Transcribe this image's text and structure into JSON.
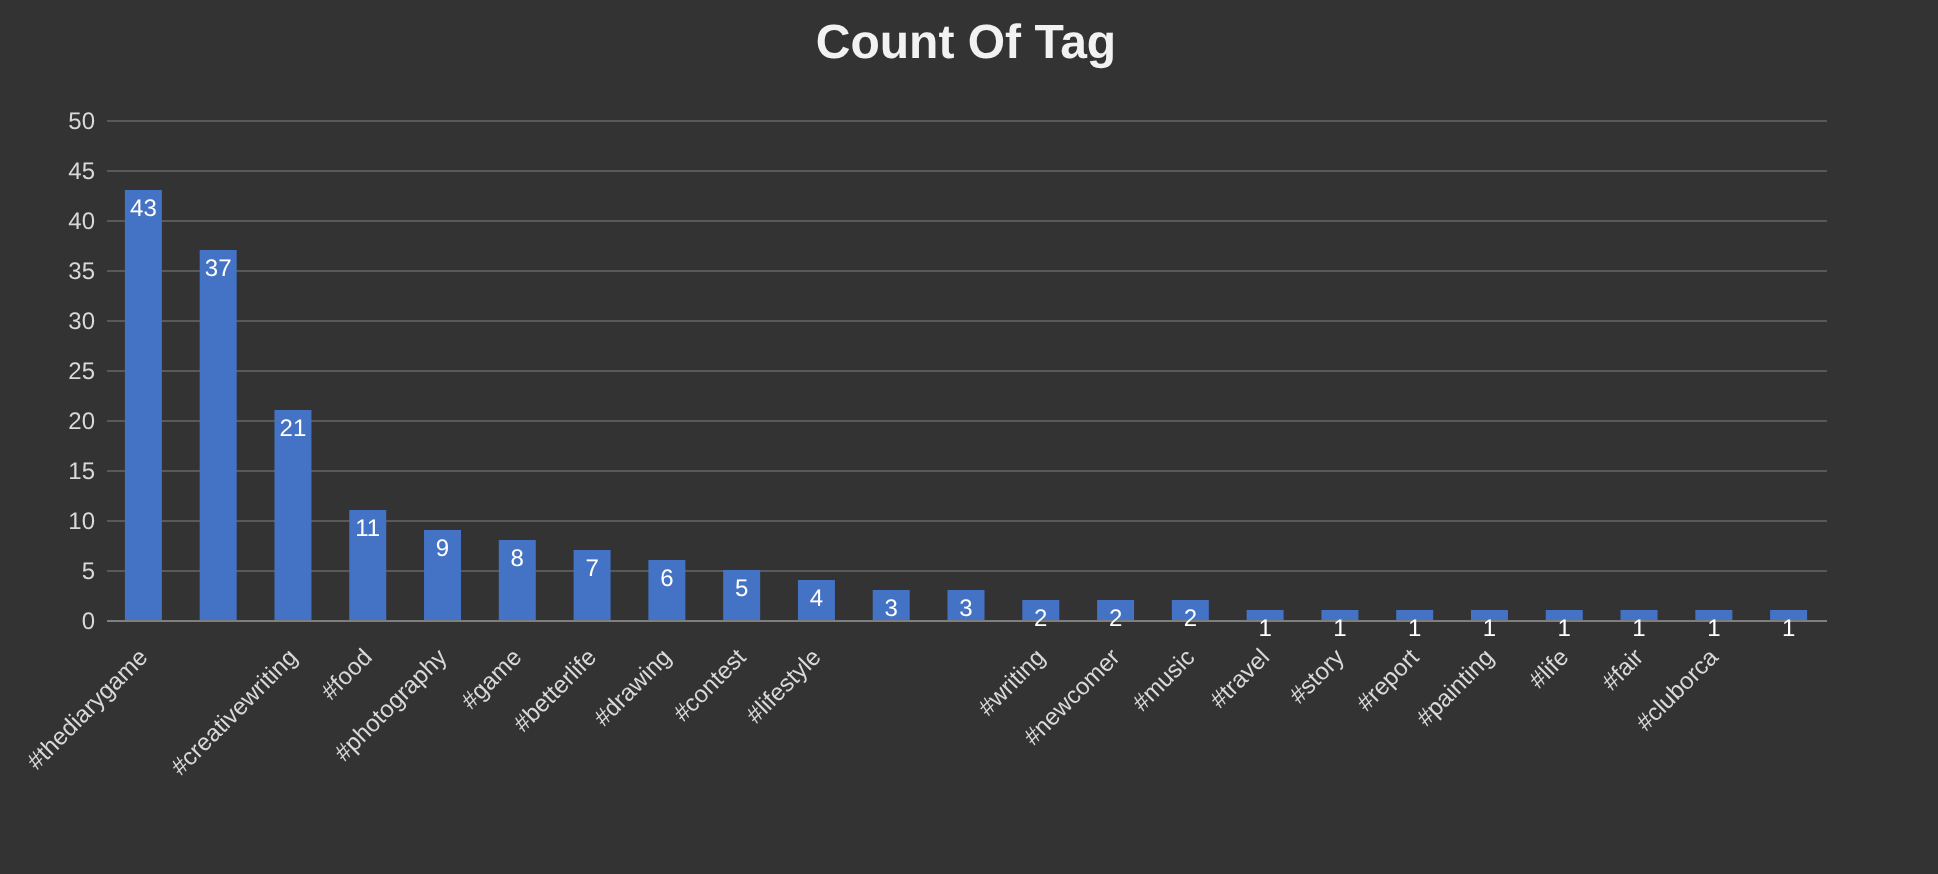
{
  "chart_data": {
    "type": "bar",
    "title": "Count Of Tag",
    "categories": [
      "#thediarygame",
      null,
      "#creativewriting",
      "#food",
      "#photography",
      "#game",
      "#betterlife",
      "#drawing",
      "#contest",
      "#lifestyle",
      null,
      null,
      "#writing",
      "#newcomer",
      "#music",
      "#travel",
      "#story",
      "#report",
      "#painting",
      "#life",
      "#fair",
      "#cluborca",
      null
    ],
    "values": [
      43,
      37,
      21,
      11,
      9,
      8,
      7,
      6,
      5,
      4,
      3,
      3,
      2,
      2,
      2,
      1,
      1,
      1,
      1,
      1,
      1,
      1,
      1
    ],
    "color": "#4472c4",
    "ylim": [
      0,
      50
    ],
    "yticks": [
      0,
      5,
      10,
      15,
      20,
      25,
      30,
      35,
      40,
      45,
      50
    ],
    "grid": "y",
    "data_labels": true
  }
}
